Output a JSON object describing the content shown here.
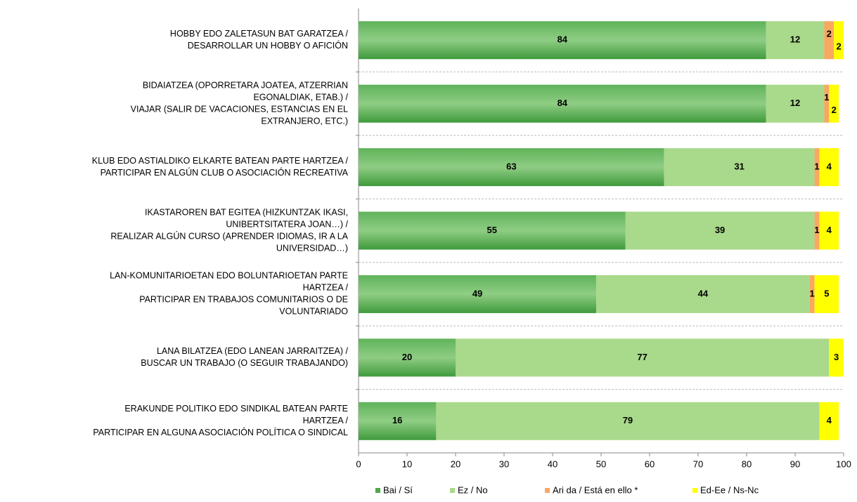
{
  "chart_data": {
    "type": "stacked-bar-horizontal",
    "categories": [
      [
        "HOBBY EDO ZALETASUN BAT GARATZEA /",
        "DESARROLLAR UN HOBBY O AFICIÓN"
      ],
      [
        "BIDAIATZEA (OPORRETARA JOATEA, ATZERRIAN",
        "EGONALDIAK, ETAB.) /",
        "VIAJAR (SALIR DE VACACIONES, ESTANCIAS EN EL",
        "EXTRANJERO, ETC.)"
      ],
      [
        "KLUB EDO ASTIALDIKO ELKARTE BATEAN PARTE HARTZEA /",
        "PARTICIPAR EN ALGÚN CLUB O ASOCIACIÓN RECREATIVA"
      ],
      [
        "IKASTAROREN BAT EGITEA (HIZKUNTZAK IKASI,",
        "UNIBERTSITATERA JOAN…) /",
        "REALIZAR ALGÚN CURSO (APRENDER IDIOMAS, IR A LA",
        "UNIVERSIDAD…)"
      ],
      [
        "LAN-KOMUNITARIOETAN EDO BOLUNTARIOETAN PARTE",
        "HARTZEA /",
        "PARTICIPAR EN TRABAJOS COMUNITARIOS O DE",
        "VOLUNTARIADO"
      ],
      [
        "LANA BILATZEA (EDO LANEAN JARRAITZEA) /",
        "BUSCAR UN TRABAJO (O SEGUIR TRABAJANDO)"
      ],
      [
        "ERAKUNDE POLITIKO EDO SINDIKAL BATEAN PARTE",
        "HARTZEA /",
        "PARTICIPAR EN ALGUNA ASOCIACIÓN POLÍTICA O SINDICAL"
      ]
    ],
    "series": [
      {
        "name": "Bai / Sí",
        "color": "#4ea84a",
        "values": [
          84,
          84,
          63,
          55,
          49,
          20,
          16
        ]
      },
      {
        "name": "Ez / No",
        "color": "#a9d98b",
        "values": [
          12,
          12,
          31,
          39,
          44,
          77,
          79
        ]
      },
      {
        "name": "Ari da / Está en ello *",
        "color": "#f9a85f",
        "values": [
          2,
          1,
          1,
          1,
          1,
          null,
          null
        ]
      },
      {
        "name": "Ed-Ee / Ns-Nc",
        "color": "#ffff00",
        "values": [
          2,
          2,
          4,
          4,
          5,
          3,
          4
        ]
      }
    ],
    "xlim": [
      0,
      100
    ],
    "xticks": [
      0,
      10,
      20,
      30,
      40,
      50,
      60,
      70,
      80,
      90,
      100
    ]
  }
}
